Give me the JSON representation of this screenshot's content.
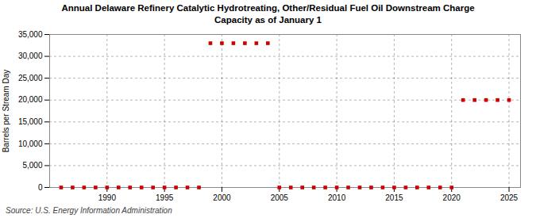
{
  "chart_data": {
    "type": "scatter",
    "title": "Annual Delaware Refinery Catalytic Hydrotreating, Other/Residual Fuel Oil Downstream Charge",
    "subtitle": "Capacity as of January 1",
    "ylabel": "Barrels per Stream Day",
    "source": "Source: U.S. Energy Information Administration",
    "x": [
      1986,
      1987,
      1988,
      1989,
      1990,
      1991,
      1992,
      1993,
      1994,
      1995,
      1996,
      1997,
      1998,
      1999,
      2000,
      2001,
      2002,
      2003,
      2004,
      2005,
      2006,
      2007,
      2008,
      2009,
      2010,
      2011,
      2012,
      2013,
      2014,
      2015,
      2016,
      2017,
      2018,
      2019,
      2020,
      2021,
      2022,
      2023,
      2024,
      2025
    ],
    "values": [
      0,
      0,
      0,
      0,
      0,
      0,
      0,
      0,
      0,
      0,
      0,
      0,
      0,
      33000,
      33000,
      33000,
      33000,
      33000,
      33000,
      0,
      0,
      0,
      0,
      0,
      0,
      0,
      0,
      0,
      0,
      0,
      0,
      0,
      0,
      0,
      0,
      20000,
      20000,
      20000,
      20000,
      20000
    ],
    "color": "#cc0000",
    "marker": "square",
    "xlim": [
      1985,
      2026
    ],
    "ylim": [
      0,
      35000
    ],
    "xticks": [
      1990,
      1995,
      2000,
      2005,
      2010,
      2015,
      2020,
      2025
    ],
    "yticks": [
      0,
      {
        "value": 5000,
        "label": "5,000"
      },
      {
        "value": 10000,
        "label": "10,000"
      },
      {
        "value": 15000,
        "label": "15,000"
      },
      {
        "value": 20000,
        "label": "20,000"
      },
      {
        "value": 25000,
        "label": "25,000"
      },
      {
        "value": 30000,
        "label": "30,000"
      },
      {
        "value": 35000,
        "label": "35,000"
      }
    ],
    "grid": true
  }
}
